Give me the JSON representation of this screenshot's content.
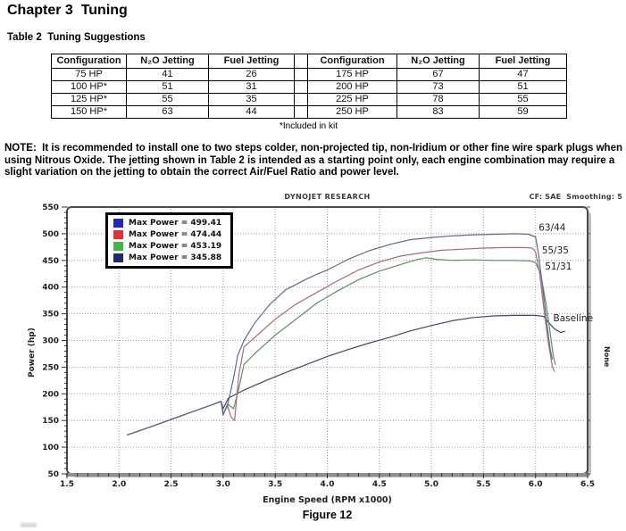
{
  "page": {
    "chapter_title": "Chapter 3  Tuning",
    "table_caption": "Table 2  Tuning Suggestions",
    "table_footnote": "*Included in kit",
    "note": "NOTE:  It is recommended to install one to two steps colder, non-projected tip, non-Iridium or other fine wire spark plugs when using Nitrous Oxide. The jetting shown in Table 2 is intended as a starting point only, each engine combination may require a slight variation on the jetting to obtain the correct Air/Fuel Ratio and power level.",
    "figure_caption": "Figure 12"
  },
  "jetting_table": {
    "headers": [
      "Configuration",
      "N₂O Jetting",
      "Fuel Jetting",
      "",
      "Configuration",
      "N₂O Jetting",
      "Fuel Jetting"
    ],
    "rows": [
      [
        "75 HP",
        "41",
        "26",
        "",
        "175 HP",
        "67",
        "47"
      ],
      [
        "100 HP*",
        "51",
        "31",
        "",
        "200 HP",
        "73",
        "51"
      ],
      [
        "125 HP*",
        "55",
        "35",
        "",
        "225 HP",
        "78",
        "55"
      ],
      [
        "150 HP*",
        "63",
        "44",
        "",
        "250 HP",
        "83",
        "59"
      ]
    ]
  },
  "chart_data": {
    "type": "line",
    "title": "DYNOJET RESEARCH",
    "corner_text": "CF: SAE  Smoothing: 5",
    "xlabel": "Engine Speed (RPM x1000)",
    "ylabel": "Power (hp)",
    "right_side_label": "None",
    "xlim": [
      1.5,
      6.5
    ],
    "ylim": [
      50,
      550
    ],
    "x_ticks": [
      1.5,
      2.0,
      2.5,
      3.0,
      3.5,
      4.0,
      4.5,
      5.0,
      5.5,
      6.0,
      6.5
    ],
    "y_ticks": [
      50,
      100,
      150,
      200,
      250,
      300,
      350,
      400,
      450,
      500,
      550
    ],
    "x_minor_step": 0.1,
    "y_minor_step": 10,
    "grid": "dotted",
    "grid_color": "#9c9c9c",
    "legend_position": "top-left",
    "series": [
      {
        "name": "63/44",
        "legend": "Max Power = 499.41",
        "legend_color": "#2424cc",
        "line_color": "#5c6c94",
        "points": [
          [
            2.08,
            123
          ],
          [
            2.3,
            138
          ],
          [
            2.5,
            152
          ],
          [
            2.7,
            166
          ],
          [
            2.9,
            180
          ],
          [
            2.98,
            186
          ],
          [
            3.0,
            160
          ],
          [
            3.05,
            185
          ],
          [
            3.1,
            230
          ],
          [
            3.14,
            272
          ],
          [
            3.2,
            300
          ],
          [
            3.3,
            332
          ],
          [
            3.45,
            368
          ],
          [
            3.6,
            395
          ],
          [
            3.8,
            415
          ],
          [
            3.9,
            424
          ],
          [
            4.0,
            432
          ],
          [
            4.2,
            452
          ],
          [
            4.4,
            468
          ],
          [
            4.6,
            480
          ],
          [
            4.8,
            489
          ],
          [
            5.0,
            493
          ],
          [
            5.2,
            496
          ],
          [
            5.4,
            498
          ],
          [
            5.6,
            499
          ],
          [
            5.8,
            500
          ],
          [
            5.93,
            499
          ],
          [
            6.0,
            494
          ],
          [
            6.03,
            460
          ],
          [
            6.07,
            395
          ],
          [
            6.11,
            330
          ],
          [
            6.14,
            285
          ],
          [
            6.16,
            265
          ]
        ]
      },
      {
        "name": "55/35",
        "legend": "Max Power = 474.44",
        "legend_color": "#e03232",
        "line_color": "#a86a74",
        "points": [
          [
            2.08,
            123
          ],
          [
            2.3,
            138
          ],
          [
            2.5,
            152
          ],
          [
            2.7,
            166
          ],
          [
            2.9,
            180
          ],
          [
            2.98,
            186
          ],
          [
            3.0,
            162
          ],
          [
            3.04,
            178
          ],
          [
            3.08,
            155
          ],
          [
            3.11,
            150
          ],
          [
            3.15,
            235
          ],
          [
            3.2,
            288
          ],
          [
            3.3,
            305
          ],
          [
            3.5,
            340
          ],
          [
            3.7,
            368
          ],
          [
            3.9,
            390
          ],
          [
            4.1,
            412
          ],
          [
            4.3,
            432
          ],
          [
            4.5,
            447
          ],
          [
            4.7,
            458
          ],
          [
            4.9,
            464
          ],
          [
            5.1,
            469
          ],
          [
            5.3,
            471
          ],
          [
            5.5,
            473
          ],
          [
            5.7,
            474
          ],
          [
            5.9,
            474
          ],
          [
            5.97,
            473
          ],
          [
            6.0,
            466
          ],
          [
            6.04,
            425
          ],
          [
            6.08,
            360
          ],
          [
            6.12,
            300
          ],
          [
            6.16,
            252
          ],
          [
            6.18,
            242
          ]
        ]
      },
      {
        "name": "51/31",
        "legend": "Max Power = 453.19",
        "legend_color": "#3cb846",
        "line_color": "#5f8f63",
        "points": [
          [
            2.08,
            123
          ],
          [
            2.3,
            138
          ],
          [
            2.5,
            152
          ],
          [
            2.7,
            166
          ],
          [
            2.9,
            180
          ],
          [
            2.98,
            186
          ],
          [
            3.0,
            163
          ],
          [
            3.05,
            180
          ],
          [
            3.1,
            172
          ],
          [
            3.15,
            210
          ],
          [
            3.2,
            255
          ],
          [
            3.3,
            275
          ],
          [
            3.5,
            310
          ],
          [
            3.7,
            340
          ],
          [
            3.9,
            370
          ],
          [
            4.1,
            393
          ],
          [
            4.3,
            414
          ],
          [
            4.5,
            430
          ],
          [
            4.7,
            442
          ],
          [
            4.85,
            451
          ],
          [
            4.95,
            455
          ],
          [
            5.05,
            452
          ],
          [
            5.2,
            450
          ],
          [
            5.4,
            451
          ],
          [
            5.6,
            450
          ],
          [
            5.8,
            450
          ],
          [
            5.95,
            449
          ],
          [
            6.0,
            446
          ],
          [
            6.05,
            425
          ],
          [
            6.1,
            370
          ],
          [
            6.14,
            315
          ],
          [
            6.17,
            272
          ],
          [
            6.19,
            255
          ]
        ]
      },
      {
        "name": "Baseline",
        "legend": "Max Power = 345.88",
        "legend_color": "#1e2a6e",
        "line_color": "#3c4a64",
        "points": [
          [
            2.08,
            123
          ],
          [
            2.3,
            138
          ],
          [
            2.5,
            152
          ],
          [
            2.7,
            166
          ],
          [
            2.9,
            180
          ],
          [
            2.98,
            186
          ],
          [
            3.0,
            172
          ],
          [
            3.05,
            192
          ],
          [
            3.2,
            207
          ],
          [
            3.4,
            224
          ],
          [
            3.6,
            240
          ],
          [
            3.8,
            255
          ],
          [
            4.0,
            270
          ],
          [
            4.2,
            283
          ],
          [
            4.4,
            295
          ],
          [
            4.6,
            306
          ],
          [
            4.8,
            318
          ],
          [
            5.0,
            328
          ],
          [
            5.2,
            337
          ],
          [
            5.4,
            343
          ],
          [
            5.6,
            346
          ],
          [
            5.8,
            347
          ],
          [
            6.0,
            347
          ],
          [
            6.08,
            345
          ],
          [
            6.12,
            335
          ],
          [
            6.18,
            322
          ],
          [
            6.24,
            315
          ],
          [
            6.28,
            317
          ]
        ]
      }
    ],
    "annotations": [
      {
        "text": "63/44",
        "x": 6.03,
        "y": 511
      },
      {
        "text": "55/35",
        "x": 6.06,
        "y": 468
      },
      {
        "text": "51/31",
        "x": 6.09,
        "y": 438
      },
      {
        "text": "Baseline",
        "x": 6.17,
        "y": 341
      }
    ]
  }
}
